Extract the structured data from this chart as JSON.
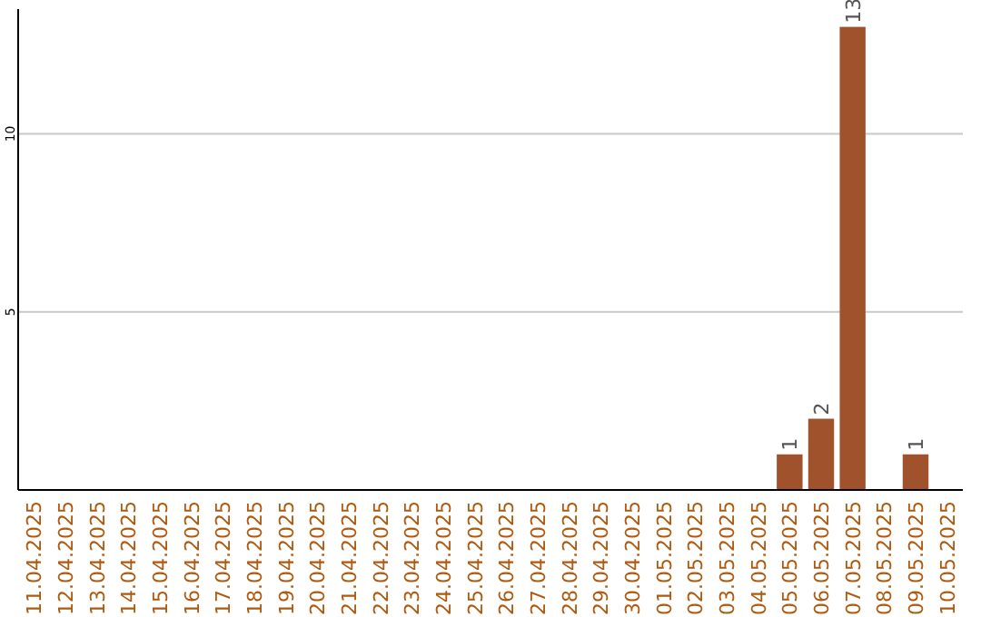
{
  "chart_data": {
    "type": "bar",
    "categories": [
      "11.04.2025",
      "12.04.2025",
      "13.04.2025",
      "14.04.2025",
      "15.04.2025",
      "16.04.2025",
      "17.04.2025",
      "18.04.2025",
      "19.04.2025",
      "20.04.2025",
      "21.04.2025",
      "22.04.2025",
      "23.04.2025",
      "24.04.2025",
      "25.04.2025",
      "26.04.2025",
      "27.04.2025",
      "28.04.2025",
      "29.04.2025",
      "30.04.2025",
      "01.05.2025",
      "02.05.2025",
      "03.05.2025",
      "04.05.2025",
      "05.05.2025",
      "06.05.2025",
      "07.05.2025",
      "08.05.2025",
      "09.05.2025",
      "10.05.2025"
    ],
    "values": [
      0,
      0,
      0,
      0,
      0,
      0,
      0,
      0,
      0,
      0,
      0,
      0,
      0,
      0,
      0,
      0,
      0,
      0,
      0,
      0,
      0,
      0,
      0,
      0,
      1,
      2,
      13,
      0,
      1,
      0
    ],
    "value_labels": [
      null,
      null,
      null,
      null,
      null,
      null,
      null,
      null,
      null,
      null,
      null,
      null,
      null,
      null,
      null,
      null,
      null,
      null,
      null,
      null,
      null,
      null,
      null,
      null,
      "1",
      "2",
      "13",
      null,
      "1",
      null
    ],
    "color": "#a0522d",
    "ylim": [
      0,
      13.5
    ],
    "yticks": [
      5,
      10
    ],
    "grid": "y"
  }
}
